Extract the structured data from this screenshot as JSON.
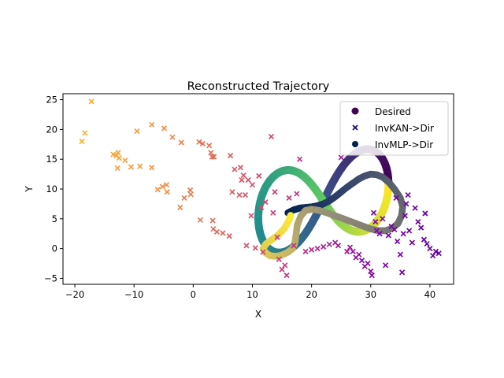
{
  "chart_data": {
    "type": "scatter",
    "title": "Reconstructed Trajectory",
    "xlabel": "X",
    "ylabel": "Y",
    "xlim": [
      -22,
      44
    ],
    "ylim": [
      -6,
      26
    ],
    "xticks": [
      -20,
      -10,
      0,
      10,
      20,
      30,
      40
    ],
    "yticks": [
      -5,
      0,
      5,
      10,
      15,
      20,
      25
    ],
    "grid": false,
    "legend_position": "upper-right",
    "legend": [
      {
        "label": "Desired",
        "marker": "circle",
        "color": "#440154"
      },
      {
        "label": "InvKAN->Dir",
        "marker": "x",
        "color": "#1a0a7a"
      },
      {
        "label": "InvMLP->Dir",
        "marker": "circle",
        "color": "#00224e"
      }
    ],
    "series": [
      {
        "name": "Desired",
        "marker": "circle",
        "colormap": "viridis",
        "shape": "lemniscate",
        "center": [
          22,
          8
        ],
        "half_width_x": 11,
        "half_height_y": 5,
        "tilt": 0.5
      },
      {
        "name": "InvMLP->Dir",
        "marker": "circle",
        "colormap": "cividis",
        "points": [
          [
            16,
            6
          ],
          [
            17,
            6.5
          ],
          [
            18,
            6.8
          ],
          [
            19,
            6.9
          ],
          [
            20,
            7
          ],
          [
            21,
            7.2
          ],
          [
            22,
            7.5
          ],
          [
            23,
            8
          ],
          [
            24,
            8.7
          ],
          [
            25,
            9.5
          ],
          [
            26,
            10.3
          ],
          [
            27,
            11
          ],
          [
            28,
            11.7
          ],
          [
            29,
            12.2
          ],
          [
            30,
            12.5
          ],
          [
            31,
            12.4
          ],
          [
            32,
            12
          ],
          [
            33,
            11.2
          ],
          [
            34,
            10
          ],
          [
            35,
            8.5
          ],
          [
            35.4,
            7
          ],
          [
            35.2,
            5.5
          ],
          [
            34.6,
            4.2
          ],
          [
            33.6,
            3.4
          ],
          [
            32.5,
            3
          ],
          [
            31.3,
            3
          ],
          [
            30,
            3.3
          ],
          [
            28.6,
            3.8
          ],
          [
            27,
            4.4
          ],
          [
            25.4,
            5
          ],
          [
            24,
            5.5
          ],
          [
            22.6,
            6
          ],
          [
            21.3,
            6.4
          ],
          [
            20,
            6.6
          ],
          [
            19,
            6.4
          ],
          [
            18.2,
            5.5
          ],
          [
            17.6,
            4
          ],
          [
            17.4,
            2.5
          ],
          [
            17.2,
            1
          ],
          [
            16.8,
            0
          ],
          [
            16,
            -0.6
          ],
          [
            15,
            -1.1
          ],
          [
            14,
            -1.3
          ],
          [
            13,
            -1.2
          ],
          [
            12.2,
            -0.7
          ],
          [
            11.8,
            0
          ],
          [
            12.3,
            0.8
          ],
          [
            13.3,
            1.5
          ],
          [
            14.5,
            2.4
          ],
          [
            15.5,
            3.5
          ],
          [
            16.2,
            4.8
          ],
          [
            16.5,
            5.7
          ]
        ]
      },
      {
        "name": "InvKAN->Dir",
        "marker": "x",
        "colormap": "plasma",
        "points": [
          [
            -17.2,
            24.7
          ],
          [
            -18.8,
            18
          ],
          [
            -18.3,
            19.4
          ],
          [
            -13.5,
            15.8
          ],
          [
            -13,
            15.6
          ],
          [
            -12.7,
            16.1
          ],
          [
            -12.5,
            15.2
          ],
          [
            -12.8,
            13.5
          ],
          [
            -11.5,
            14.8
          ],
          [
            -10.5,
            13.7
          ],
          [
            -9.5,
            19.7
          ],
          [
            -9,
            13.8
          ],
          [
            -7,
            13.6
          ],
          [
            -7,
            20.8
          ],
          [
            -6,
            9.9
          ],
          [
            -5.2,
            10.4
          ],
          [
            -4.9,
            20.2
          ],
          [
            -4.5,
            10.7
          ],
          [
            -4.4,
            9.5
          ],
          [
            -3.5,
            18.7
          ],
          [
            -2.2,
            6.9
          ],
          [
            -2,
            17.8
          ],
          [
            -1.5,
            8.5
          ],
          [
            -0.5,
            9.8
          ],
          [
            -0.4,
            9.1
          ],
          [
            1,
            17.9
          ],
          [
            1.2,
            4.8
          ],
          [
            1.6,
            17.6
          ],
          [
            2.7,
            17.3
          ],
          [
            3,
            16.1
          ],
          [
            3.2,
            15.4
          ],
          [
            3.3,
            4.7
          ],
          [
            3.4,
            3.3
          ],
          [
            3.5,
            15.4
          ],
          [
            4,
            2.8
          ],
          [
            5,
            2.6
          ],
          [
            6.1,
            2.1
          ],
          [
            6.3,
            15.6
          ],
          [
            6.6,
            9.5
          ],
          [
            7,
            13.3
          ],
          [
            7.8,
            9
          ],
          [
            8,
            13.6
          ],
          [
            8.2,
            11.5
          ],
          [
            8.5,
            12.3
          ],
          [
            8.8,
            9
          ],
          [
            9,
            0.5
          ],
          [
            9.3,
            11.5
          ],
          [
            9.8,
            5.5
          ],
          [
            10,
            10.7
          ],
          [
            10.5,
            0.1
          ],
          [
            11.1,
            12.2
          ],
          [
            11.5,
            6.9
          ],
          [
            11.8,
            -0.6
          ],
          [
            12.2,
            7.8
          ],
          [
            13.2,
            18.8
          ],
          [
            13.5,
            6
          ],
          [
            13.8,
            9.5
          ],
          [
            14.2,
            1.9
          ],
          [
            14.5,
            -1.8
          ],
          [
            15,
            -3.5
          ],
          [
            15.5,
            -2.8
          ],
          [
            15.8,
            -4.5
          ],
          [
            16.2,
            8.5
          ],
          [
            17,
            0.5
          ],
          [
            17.5,
            9.2
          ],
          [
            18,
            15
          ],
          [
            19,
            -0.5
          ],
          [
            20,
            -0.2
          ],
          [
            21,
            0
          ],
          [
            22,
            0.3
          ],
          [
            23,
            0.7
          ],
          [
            24,
            1
          ],
          [
            25,
            15.3
          ],
          [
            24.5,
            0.5
          ],
          [
            26,
            -0.5
          ],
          [
            26.5,
            0.2
          ],
          [
            27,
            -0.5
          ],
          [
            27.5,
            -1.5
          ],
          [
            28,
            -1
          ],
          [
            28.5,
            -2
          ],
          [
            29,
            -3
          ],
          [
            29.5,
            -2.5
          ],
          [
            30,
            -3.8
          ],
          [
            30.2,
            -4.5
          ],
          [
            30.5,
            6
          ],
          [
            30.8,
            4.5
          ],
          [
            31,
            3
          ],
          [
            31.5,
            2.5
          ],
          [
            32,
            5
          ],
          [
            32.5,
            -2.8
          ],
          [
            33,
            2.2
          ],
          [
            33.5,
            3.7
          ],
          [
            34,
            3.2
          ],
          [
            34.3,
            8.5
          ],
          [
            34.5,
            1.2
          ],
          [
            35,
            -1
          ],
          [
            35.3,
            -4
          ],
          [
            35.5,
            2.5
          ],
          [
            35.8,
            5.5
          ],
          [
            36,
            7.5
          ],
          [
            36.3,
            9
          ],
          [
            36.5,
            3
          ],
          [
            37,
            1
          ],
          [
            37.5,
            6.8
          ],
          [
            38,
            4.5
          ],
          [
            38.5,
            3.5
          ],
          [
            39,
            1.5
          ],
          [
            39.5,
            0.8
          ],
          [
            40,
            0
          ],
          [
            40.5,
            -1.2
          ],
          [
            41,
            -0.5
          ],
          [
            41.5,
            -0.8
          ],
          [
            39.2,
            5.9
          ]
        ]
      }
    ]
  }
}
